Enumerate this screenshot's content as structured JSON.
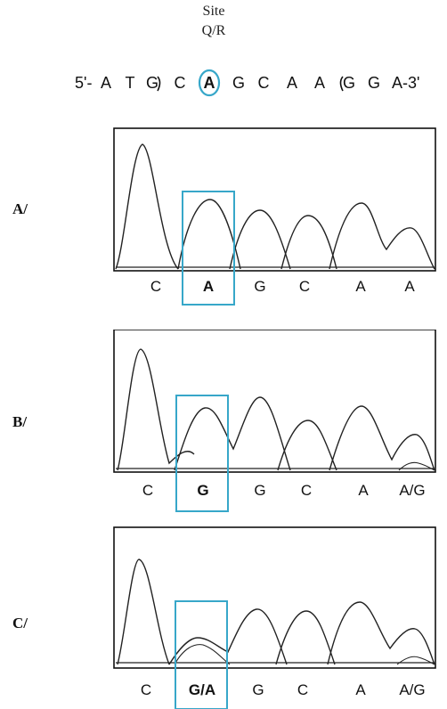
{
  "header": {
    "site_word": "Site",
    "site_code": "Q/R",
    "sequence_prefix": "5'-",
    "sequence_suffix": "-3'",
    "bases": [
      "A",
      "T",
      "G",
      "C",
      "A",
      "G",
      "C",
      "A",
      "A",
      "G",
      "G",
      "A"
    ],
    "highlight_index": 4
  },
  "panels": [
    {
      "label": "A/",
      "bases": [
        "C",
        "A",
        "G",
        "C",
        "A",
        "A"
      ],
      "highlight_base_index": 1,
      "bold_base": "A"
    },
    {
      "label": "B/",
      "bases": [
        "C",
        "G",
        "G",
        "C",
        "A",
        "A/G"
      ],
      "highlight_base_index": 1,
      "bold_base": "G"
    },
    {
      "label": "C/",
      "bases": [
        "C",
        "G/A",
        "G",
        "C",
        "A",
        "A/G"
      ],
      "highlight_base_index": 1,
      "bold_base": "G/A"
    }
  ],
  "colors": {
    "highlight": "#37a7c9",
    "trace": "#222222"
  }
}
